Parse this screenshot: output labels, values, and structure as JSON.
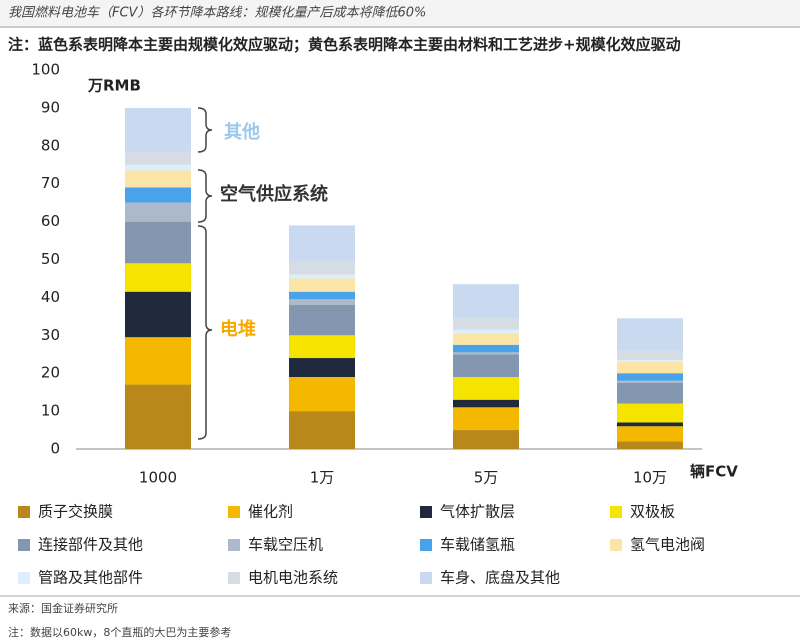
{
  "chart_data": {
    "type": "stacked-bar",
    "title": "我国燃料电池车（FCV）各环节降本路线：规模化量产后成本将降低60%",
    "subtitle": "注：蓝色系表明降本主要由规模化效应驱动；黄色系表明降本主要由材料和工艺进步+规模化效应驱动",
    "ylabel": "万RMB",
    "xlabel": "辆FCV",
    "source": "来源：国金证券研究所",
    "footnote": "注：数据以60kw，8个直瓶的大巴为主要参考",
    "categories": [
      "1000",
      "1万",
      "5万",
      "10万"
    ],
    "ylim": [
      0,
      100
    ],
    "yticks": [
      0,
      10,
      20,
      30,
      40,
      50,
      60,
      70,
      80,
      90,
      100
    ],
    "grid": false,
    "series": [
      {
        "name": "质子交换膜",
        "color": "#b8891a",
        "values": [
          17,
          10,
          5,
          2
        ]
      },
      {
        "name": "催化剂",
        "color": "#f5b800",
        "values": [
          12.5,
          9,
          6,
          4
        ]
      },
      {
        "name": "气体扩散层",
        "color": "#1f2a3c",
        "values": [
          12,
          5,
          2,
          1
        ]
      },
      {
        "name": "双极板",
        "color": "#f5e400",
        "values": [
          7.5,
          6,
          6,
          5
        ]
      },
      {
        "name": "连接部件及其他",
        "color": "#8497b0",
        "values": [
          11,
          8,
          6,
          5.5
        ]
      },
      {
        "name": "车载空压机",
        "color": "#adb9ca",
        "values": [
          5,
          1.5,
          0.5,
          0.5
        ]
      },
      {
        "name": "车载储氢瓶",
        "color": "#4aa3e8",
        "values": [
          4,
          2,
          2,
          2
        ]
      },
      {
        "name": "氢气电池阀",
        "color": "#fbe5a6",
        "values": [
          4.5,
          3.5,
          3,
          3
        ]
      },
      {
        "name": "管路及其他部件",
        "color": "#ddeeff",
        "values": [
          1.5,
          1,
          1,
          0.5
        ]
      },
      {
        "name": "电机电池系统",
        "color": "#d6dce4",
        "values": [
          3.5,
          3.5,
          3,
          2.5
        ]
      },
      {
        "name": "车身、底盘及其他",
        "color": "#c9daf0",
        "values": [
          11.5,
          9.5,
          9,
          8.5
        ]
      }
    ],
    "annotations": [
      {
        "text": "其他",
        "color": "#9cc8ea"
      },
      {
        "text": "空气供应系统",
        "color": "#333333"
      },
      {
        "text": "电堆",
        "color": "#f5a800"
      }
    ]
  }
}
